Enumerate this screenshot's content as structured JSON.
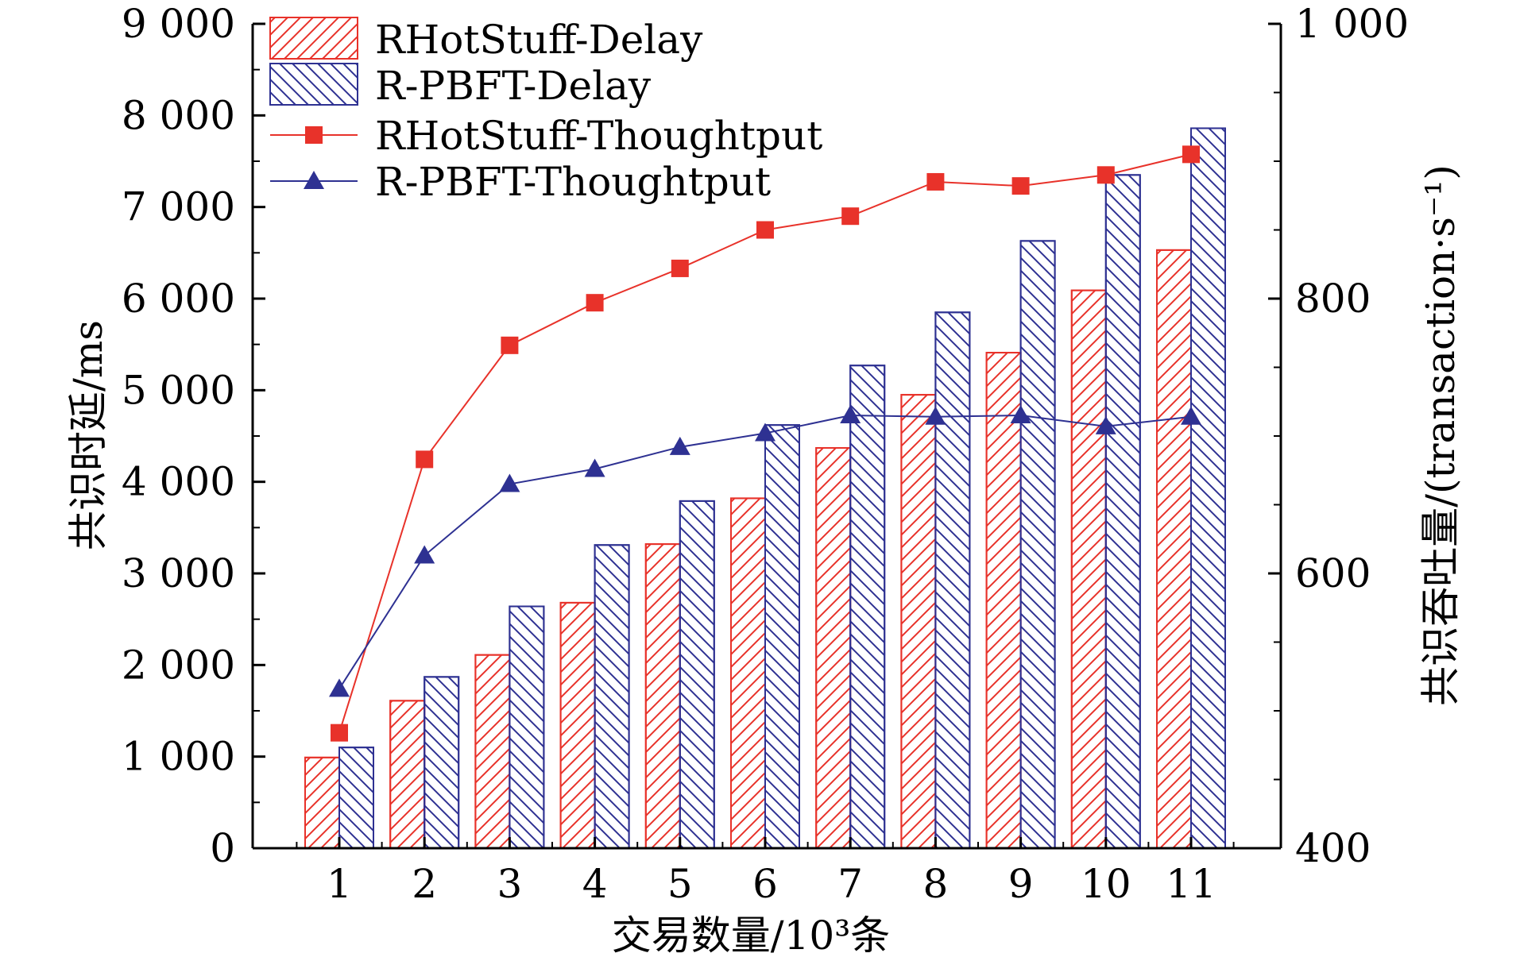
{
  "chart_data": {
    "type": "bar",
    "xlabel": "交易数量/10³条",
    "ylabel_left": "共识时延/ms",
    "ylabel_right": "共识吞吐量/(transaction·s⁻¹)",
    "categories": [
      "1",
      "2",
      "3",
      "4",
      "5",
      "6",
      "7",
      "8",
      "9",
      "10",
      "11"
    ],
    "ylim_left": [
      0,
      9000
    ],
    "yticks_left": [
      0,
      1000,
      2000,
      3000,
      4000,
      5000,
      6000,
      7000,
      8000,
      9000
    ],
    "ytick_labels_left": [
      "0",
      "1 000",
      "2 000",
      "3 000",
      "4 000",
      "5 000",
      "6 000",
      "7 000",
      "8 000",
      "9 000"
    ],
    "ylim_right": [
      400,
      1000
    ],
    "yticks_right": [
      400,
      600,
      800,
      1000
    ],
    "ytick_labels_right": [
      "400",
      "600",
      "800",
      "1 000"
    ],
    "bar_series": [
      {
        "name": "RHotStuff-Delay",
        "axis": "left",
        "color": "#e8322a",
        "hatch": "forward",
        "values": [
          990,
          1610,
          2110,
          2680,
          3320,
          3820,
          4370,
          4950,
          5410,
          6090,
          6530
        ]
      },
      {
        "name": "R-PBFT-Delay",
        "axis": "left",
        "color": "#2e3192",
        "hatch": "backward",
        "values": [
          1100,
          1870,
          2640,
          3310,
          3790,
          4620,
          5270,
          5850,
          6630,
          7350,
          7860
        ]
      }
    ],
    "line_series": [
      {
        "name": "RHotStuff-Thoughtput",
        "axis": "right",
        "color": "#e8322a",
        "marker": "square",
        "values": [
          484,
          683,
          766,
          797,
          822,
          850,
          860,
          885,
          882,
          890,
          905
        ]
      },
      {
        "name": "R-PBFT-Thoughtput",
        "axis": "right",
        "color": "#2e3192",
        "marker": "triangle",
        "values": [
          516,
          613,
          665,
          676,
          692,
          702,
          715,
          714,
          715,
          707,
          714
        ]
      }
    ],
    "legend_position": "top-left",
    "grid": false
  }
}
